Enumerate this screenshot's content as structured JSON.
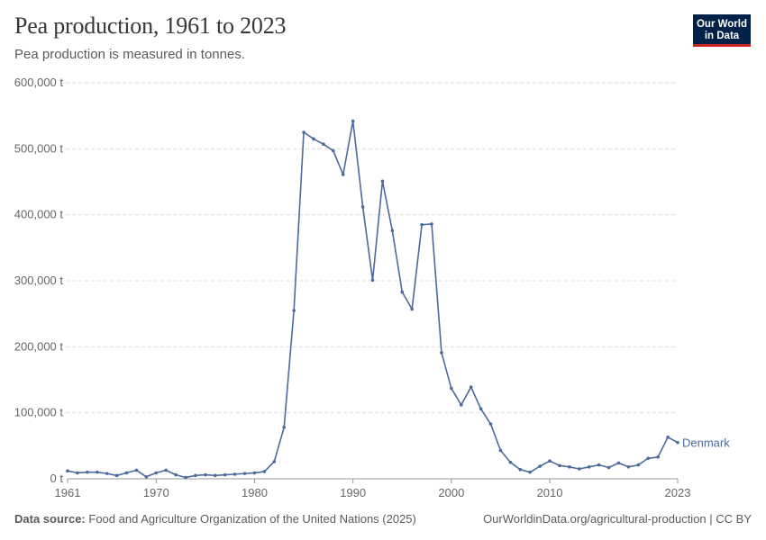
{
  "header": {
    "title": "Pea production, 1961 to 2023",
    "subtitle": "Pea production is measured in tonnes."
  },
  "logo": {
    "line1": "Our World",
    "line2": "in Data"
  },
  "footer": {
    "source_label": "Data source:",
    "source_text": "Food and Agriculture Organization of the United Nations (2025)",
    "url": "OurWorldinData.org/agricultural-production | CC BY"
  },
  "colors": {
    "series": "#4c6a9c",
    "grid": "#dddddd",
    "axis": "#999999"
  },
  "chart_data": {
    "type": "line",
    "title": "Pea production, 1961 to 2023",
    "xlabel": "",
    "ylabel": "",
    "unit": "t",
    "xlim": [
      1961,
      2023
    ],
    "ylim": [
      0,
      600000
    ],
    "yticks": [
      0,
      100000,
      200000,
      300000,
      400000,
      500000,
      600000
    ],
    "ytick_labels": [
      "0 t",
      "100,000 t",
      "200,000 t",
      "300,000 t",
      "400,000 t",
      "500,000 t",
      "600,000 t"
    ],
    "xticks": [
      1961,
      1970,
      1980,
      1990,
      2000,
      2010,
      2023
    ],
    "xtick_labels": [
      "1961",
      "1970",
      "1980",
      "1990",
      "2000",
      "2010",
      "2023"
    ],
    "series": [
      {
        "name": "Denmark",
        "x": [
          1961,
          1962,
          1963,
          1964,
          1965,
          1966,
          1967,
          1968,
          1969,
          1970,
          1971,
          1972,
          1973,
          1974,
          1975,
          1976,
          1977,
          1978,
          1979,
          1980,
          1981,
          1982,
          1983,
          1984,
          1985,
          1986,
          1987,
          1988,
          1989,
          1990,
          1991,
          1992,
          1993,
          1994,
          1995,
          1996,
          1997,
          1998,
          1999,
          2000,
          2001,
          2002,
          2003,
          2004,
          2005,
          2006,
          2007,
          2008,
          2009,
          2010,
          2011,
          2012,
          2013,
          2014,
          2015,
          2016,
          2017,
          2018,
          2019,
          2020,
          2021,
          2022,
          2023
        ],
        "values": [
          12000,
          9000,
          10000,
          10000,
          8000,
          5000,
          9000,
          13000,
          3000,
          9000,
          13000,
          6000,
          2000,
          5000,
          6000,
          5000,
          6000,
          7000,
          8000,
          9000,
          11000,
          26000,
          78000,
          255000,
          525000,
          515000,
          507000,
          497000,
          461000,
          542000,
          412000,
          301000,
          451000,
          376000,
          283000,
          257000,
          385000,
          386000,
          191000,
          137000,
          112000,
          139000,
          106000,
          83000,
          43000,
          25000,
          14000,
          10000,
          19000,
          27000,
          20000,
          18000,
          15000,
          18000,
          21000,
          17000,
          24000,
          18000,
          21000,
          31000,
          33000,
          63000,
          55000
        ]
      }
    ]
  }
}
